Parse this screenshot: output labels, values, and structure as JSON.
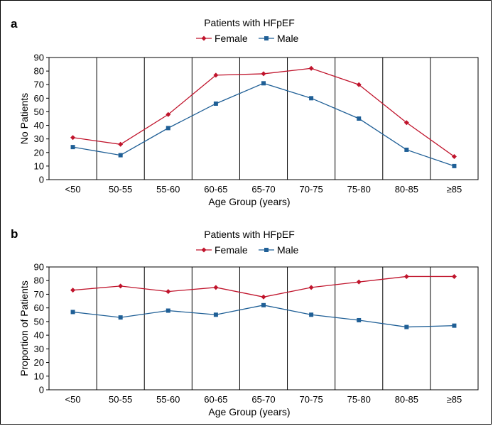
{
  "chart_data": [
    {
      "panel_label": "a",
      "type": "line",
      "title": "Patients with HFpEF",
      "xlabel": "Age Group (years)",
      "ylabel": "No Patients",
      "categories": [
        "<50",
        "50-55",
        "55-60",
        "60-65",
        "65-70",
        "70-75",
        "75-80",
        "80-85",
        "≥85"
      ],
      "ylim": [
        0,
        90
      ],
      "yticks": [
        0,
        10,
        20,
        30,
        40,
        50,
        60,
        70,
        80,
        90
      ],
      "grid": "vertical category dividers",
      "legend": "top-center",
      "series": [
        {
          "name": "Female",
          "color": "#c0142c",
          "marker": "diamond",
          "values": [
            31,
            26,
            48,
            77,
            78,
            82,
            70,
            42,
            17
          ]
        },
        {
          "name": "Male",
          "color": "#1f5f96",
          "marker": "square",
          "values": [
            24,
            18,
            38,
            56,
            71,
            60,
            45,
            22,
            10
          ]
        }
      ]
    },
    {
      "panel_label": "b",
      "type": "line",
      "title": "Patients with HFpEF",
      "xlabel": "Age Group (years)",
      "ylabel": "Proportion of Patients",
      "categories": [
        "<50",
        "50-55",
        "55-60",
        "60-65",
        "65-70",
        "70-75",
        "75-80",
        "80-85",
        "≥85"
      ],
      "ylim": [
        0,
        90
      ],
      "yticks": [
        0,
        10,
        20,
        30,
        40,
        50,
        60,
        70,
        80,
        90
      ],
      "grid": "vertical category dividers",
      "legend": "top-center",
      "series": [
        {
          "name": "Female",
          "color": "#c0142c",
          "marker": "diamond",
          "values": [
            73,
            76,
            72,
            75,
            68,
            75,
            79,
            83,
            83
          ]
        },
        {
          "name": "Male",
          "color": "#1f5f96",
          "marker": "square",
          "values": [
            57,
            53,
            58,
            55,
            62,
            55,
            51,
            46,
            47
          ]
        }
      ]
    }
  ]
}
